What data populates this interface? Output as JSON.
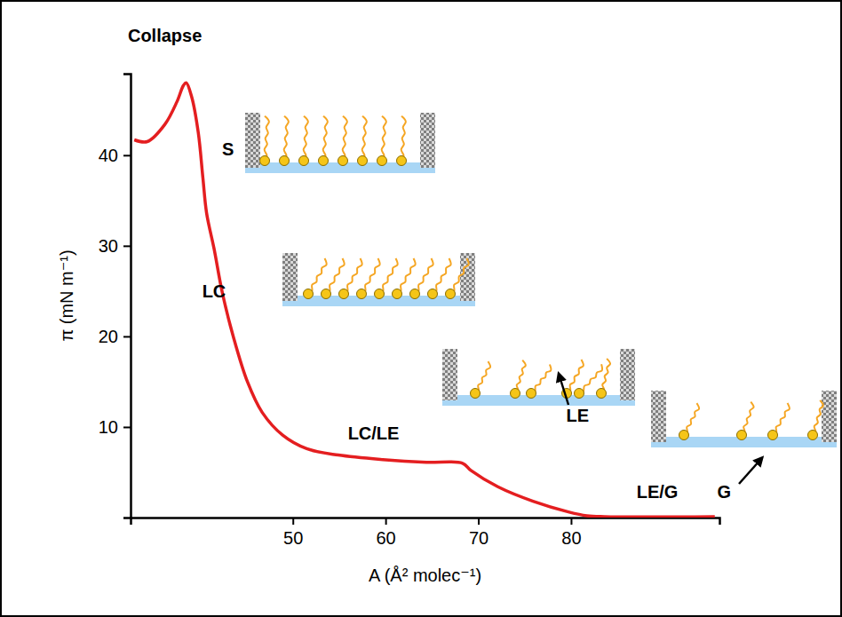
{
  "chart_data": {
    "type": "line",
    "x_label": "A (Å² molec⁻¹)",
    "y_label": "π (mN m⁻¹)",
    "x": [
      32.9,
      34.3,
      36.2,
      37.5,
      38.2,
      38.5,
      39.1,
      39.8,
      40.3,
      40.7,
      41.5,
      42.4,
      43.6,
      45.1,
      46.7,
      48.9,
      51.5,
      54.9,
      59.7,
      64.4,
      68.3,
      69.2,
      72.1,
      75.9,
      79.8,
      81.7,
      83.6,
      95.5
    ],
    "values": [
      41.7,
      41.5,
      43.4,
      45.9,
      47.7,
      48.0,
      46.4,
      42.5,
      37.5,
      33.6,
      29.7,
      24.8,
      19.9,
      15.0,
      11.6,
      9.1,
      7.6,
      6.9,
      6.4,
      6.1,
      6.0,
      5.2,
      3.4,
      1.8,
      0.6,
      0.2,
      0.1,
      0.1
    ],
    "color": "#e41e20",
    "xlim": [
      32.5,
      96
    ],
    "ylim": [
      0,
      49
    ],
    "xticks": [
      50,
      60,
      70,
      80
    ],
    "yticks": [
      10,
      20,
      30,
      40
    ],
    "grid": false,
    "annotations": [
      {
        "text": "Collapse",
        "x": 36.2,
        "y": 53.0
      },
      {
        "text": "S",
        "x": 43.0,
        "y": 40.5
      },
      {
        "text": "LC",
        "x": 41.5,
        "y": 24.8
      },
      {
        "text": "LC/LE",
        "x": 58.7,
        "y": 9.1
      },
      {
        "text": "LE",
        "x": 80.7,
        "y": 11.1
      },
      {
        "text": "LE/G",
        "x": 89.3,
        "y": 2.7
      },
      {
        "text": "G",
        "x": 96.5,
        "y": 2.7
      }
    ]
  }
}
